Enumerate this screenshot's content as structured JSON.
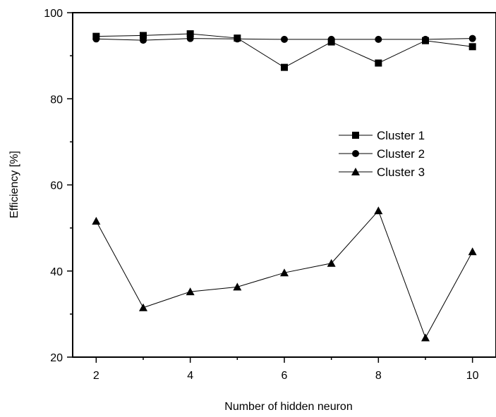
{
  "chart_data": {
    "type": "line",
    "title": "",
    "xlabel": "Number of hidden neuron",
    "ylabel": "Efficiency [%]",
    "xlim": [
      1.5,
      10.5
    ],
    "ylim": [
      20,
      100
    ],
    "x_ticks": [
      2,
      4,
      6,
      8,
      10
    ],
    "x_minor_ticks": [
      3,
      5,
      7,
      9
    ],
    "y_ticks": [
      20,
      40,
      60,
      80,
      100
    ],
    "y_minor_ticks": [
      30,
      50,
      70,
      90
    ],
    "grid": false,
    "legend_position": "upper-right",
    "x": [
      2,
      3,
      4,
      5,
      6,
      7,
      8,
      9,
      10
    ],
    "series": [
      {
        "name": "Cluster 1",
        "marker": "square",
        "color": "#000000",
        "values": [
          94.5,
          94.7,
          95.1,
          94.1,
          87.3,
          93.2,
          88.3,
          93.5,
          92.1
        ]
      },
      {
        "name": "Cluster 2",
        "marker": "circle",
        "color": "#000000",
        "values": [
          93.9,
          93.6,
          94.0,
          93.9,
          93.8,
          93.8,
          93.8,
          93.8,
          94.0
        ]
      },
      {
        "name": "Cluster 3",
        "marker": "triangle",
        "color": "#000000",
        "values": [
          51.6,
          31.5,
          35.2,
          36.3,
          39.6,
          41.8,
          54.0,
          24.5,
          44.5
        ]
      }
    ]
  }
}
